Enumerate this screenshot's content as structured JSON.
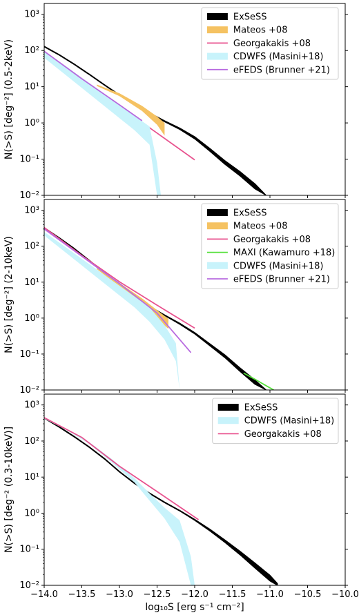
{
  "figure": {
    "xlabel": "log₁₀S [erg s⁻¹ cm⁻²]",
    "xticks": [
      "−14.0",
      "−13.5",
      "−13.0",
      "−12.5",
      "−12.0",
      "−11.5",
      "−11.0",
      "−10.5",
      "−10.0"
    ]
  },
  "chart_data": [
    {
      "type": "line",
      "ylabel": "N(>S) [deg⁻²] (0.5-2keV)",
      "xlim": [
        -14.0,
        -10.0
      ],
      "ylim_log10": [
        -2,
        3.3
      ],
      "yscale": "log",
      "yticks": [
        "10⁻²",
        "10⁻¹",
        "10⁰",
        "10¹",
        "10²",
        "10³"
      ],
      "legend": [
        "ExSeSS",
        "Mateos +08",
        "Georgakakis +08",
        "CDWFS (Masini+18)",
        "eFEDS (Brunner +21)"
      ],
      "legend_position": "top-right",
      "series": [
        {
          "name": "ExSeSS",
          "kind": "band",
          "color": "#000000",
          "x": [
            -14.0,
            -13.8,
            -13.6,
            -13.4,
            -13.2,
            -13.0,
            -12.8,
            -12.6,
            -12.4,
            -12.2,
            -12.0,
            -11.8,
            -11.6,
            -11.4,
            -11.2,
            -11.05
          ],
          "upper": [
            2.12,
            1.89,
            1.63,
            1.35,
            1.06,
            0.78,
            0.52,
            0.28,
            0.06,
            -0.14,
            -0.38,
            -0.7,
            -1.04,
            -1.34,
            -1.68,
            -2.0
          ],
          "lower": [
            2.1,
            1.87,
            1.61,
            1.33,
            1.04,
            0.76,
            0.5,
            0.26,
            0.03,
            -0.18,
            -0.44,
            -0.78,
            -1.14,
            -1.46,
            -1.82,
            -2.0
          ]
        },
        {
          "name": "Mateos +08",
          "kind": "band",
          "color": "#f5c262",
          "x": [
            -13.3,
            -13.0,
            -12.7,
            -12.5,
            -12.4
          ],
          "upper": [
            1.06,
            0.82,
            0.47,
            0.18,
            0.0
          ],
          "lower": [
            1.02,
            0.74,
            0.33,
            -0.05,
            -0.35
          ]
        },
        {
          "name": "Georgakakis +08",
          "kind": "line",
          "color": "#e8538f",
          "x": [
            -14.0,
            -13.5,
            -13.0,
            -12.5,
            -12.0
          ],
          "y": [
            1.92,
            1.18,
            0.46,
            -0.28,
            -1.02
          ]
        },
        {
          "name": "CDWFS (Masini+18)",
          "kind": "band",
          "color": "#c8f3fb",
          "x": [
            -14.0,
            -13.7,
            -13.4,
            -13.1,
            -12.8,
            -12.6,
            -12.5,
            -12.45
          ],
          "upper": [
            1.97,
            1.55,
            1.1,
            0.66,
            0.2,
            -0.1,
            -1.1,
            -2.0
          ],
          "lower": [
            1.8,
            1.3,
            0.8,
            0.3,
            -0.2,
            -0.6,
            -2.0,
            -2.0
          ]
        },
        {
          "name": "eFEDS (Brunner +21)",
          "kind": "line",
          "color": "#b86be0",
          "x": [
            -14.0,
            -13.5,
            -13.0,
            -12.7
          ],
          "y": [
            1.98,
            1.22,
            0.5,
            0.06
          ]
        }
      ]
    },
    {
      "type": "line",
      "ylabel": "N(>S) [deg⁻²] (2-10keV)",
      "xlim": [
        -14.0,
        -10.0
      ],
      "ylim_log10": [
        -2,
        3.3
      ],
      "yscale": "log",
      "yticks": [
        "10⁻²",
        "10⁻¹",
        "10⁰",
        "10¹",
        "10²",
        "10³"
      ],
      "legend": [
        "ExSeSS",
        "Mateos +08",
        "Georgakakis +08",
        "MAXI (Kawamuro +18)",
        "CDWFS (Masini+18)",
        "eFEDS (Brunner +21)"
      ],
      "legend_position": "top-right",
      "series": [
        {
          "name": "ExSeSS",
          "kind": "band",
          "color": "#000000",
          "x": [
            -14.0,
            -13.8,
            -13.6,
            -13.4,
            -13.2,
            -13.0,
            -12.8,
            -12.6,
            -12.4,
            -12.2,
            -12.0,
            -11.8,
            -11.6,
            -11.4,
            -11.2,
            -11.05
          ],
          "upper": [
            2.52,
            2.24,
            1.94,
            1.61,
            1.27,
            0.93,
            0.62,
            0.33,
            0.09,
            -0.14,
            -0.4,
            -0.71,
            -1.02,
            -1.38,
            -1.72,
            -2.0
          ],
          "lower": [
            2.5,
            2.22,
            1.92,
            1.59,
            1.25,
            0.91,
            0.6,
            0.31,
            0.07,
            -0.17,
            -0.44,
            -0.77,
            -1.1,
            -1.48,
            -1.84,
            -2.0
          ]
        },
        {
          "name": "Mateos +08",
          "kind": "band",
          "color": "#f5c262",
          "x": [
            -13.3,
            -13.0,
            -12.7,
            -12.5,
            -12.35
          ],
          "upper": [
            1.42,
            0.98,
            0.55,
            0.22,
            -0.02
          ],
          "lower": [
            1.36,
            0.88,
            0.38,
            -0.02,
            -0.3
          ]
        },
        {
          "name": "Georgakakis +08",
          "kind": "line",
          "color": "#e8538f",
          "x": [
            -14.0,
            -13.5,
            -13.0,
            -12.5,
            -12.0
          ],
          "y": [
            2.52,
            1.74,
            1.01,
            0.36,
            -0.28
          ]
        },
        {
          "name": "MAXI (Kawamuro +18)",
          "kind": "line",
          "color": "#55e03a",
          "x": [
            -11.35,
            -11.2,
            -11.05,
            -10.95
          ],
          "y": [
            -1.53,
            -1.7,
            -1.88,
            -2.0
          ]
        },
        {
          "name": "CDWFS (Masini+18)",
          "kind": "band",
          "color": "#c8f3fb",
          "x": [
            -14.0,
            -13.7,
            -13.4,
            -13.1,
            -12.8,
            -12.6,
            -12.4,
            -12.25,
            -12.2
          ],
          "upper": [
            2.4,
            1.95,
            1.5,
            1.05,
            0.6,
            0.3,
            -0.2,
            -0.7,
            -2.0
          ],
          "lower": [
            2.3,
            1.8,
            1.3,
            0.8,
            0.3,
            -0.1,
            -0.6,
            -1.2,
            -2.0
          ]
        },
        {
          "name": "eFEDS (Brunner +21)",
          "kind": "line",
          "color": "#b86be0",
          "x": [
            -14.0,
            -13.5,
            -13.0,
            -12.5,
            -12.05
          ],
          "y": [
            2.48,
            1.72,
            0.96,
            0.14,
            -0.96
          ]
        }
      ]
    },
    {
      "type": "line",
      "ylabel": "N(>S) [deg⁻² (0.3-10keV)]",
      "xlim": [
        -14.0,
        -10.0
      ],
      "ylim_log10": [
        -2,
        3.3
      ],
      "yscale": "log",
      "yticks": [
        "10⁻²",
        "10⁻¹",
        "10⁰",
        "10¹",
        "10²",
        "10³"
      ],
      "legend": [
        "ExSeSS",
        "CDWFS (Masini+18)",
        "Georgakakis +08"
      ],
      "legend_position": "top-right",
      "series": [
        {
          "name": "ExSeSS",
          "kind": "band",
          "color": "#000000",
          "x": [
            -14.0,
            -13.8,
            -13.6,
            -13.4,
            -13.2,
            -13.0,
            -12.8,
            -12.6,
            -12.4,
            -12.2,
            -12.0,
            -11.8,
            -11.6,
            -11.4,
            -11.2,
            -11.0,
            -10.9
          ],
          "upper": [
            2.65,
            2.4,
            2.13,
            1.84,
            1.52,
            1.16,
            0.84,
            0.56,
            0.31,
            0.08,
            -0.17,
            -0.44,
            -0.74,
            -1.05,
            -1.38,
            -1.72,
            -1.95
          ],
          "lower": [
            2.63,
            2.38,
            2.11,
            1.82,
            1.5,
            1.14,
            0.82,
            0.54,
            0.29,
            0.06,
            -0.2,
            -0.49,
            -0.81,
            -1.15,
            -1.52,
            -1.88,
            -2.0
          ]
        },
        {
          "name": "CDWFS (Masini+18)",
          "kind": "band",
          "color": "#c8f3fb",
          "x": [
            -14.0,
            -13.7,
            -13.4,
            -13.1,
            -12.8,
            -12.6,
            -12.4,
            -12.2,
            -12.05,
            -12.0
          ],
          "upper": [
            2.65,
            2.34,
            1.97,
            1.5,
            0.97,
            0.55,
            0.15,
            -0.2,
            -1.2,
            -2.0
          ],
          "lower": [
            2.62,
            2.3,
            1.92,
            1.4,
            0.85,
            0.35,
            -0.15,
            -0.8,
            -2.0,
            -2.0
          ]
        },
        {
          "name": "Georgakakis +08",
          "kind": "line",
          "color": "#e8538f",
          "x": [
            -14.0,
            -13.5,
            -13.0,
            -12.5,
            -11.95
          ],
          "y": [
            2.65,
            2.1,
            1.3,
            0.6,
            -0.18
          ]
        }
      ]
    }
  ]
}
